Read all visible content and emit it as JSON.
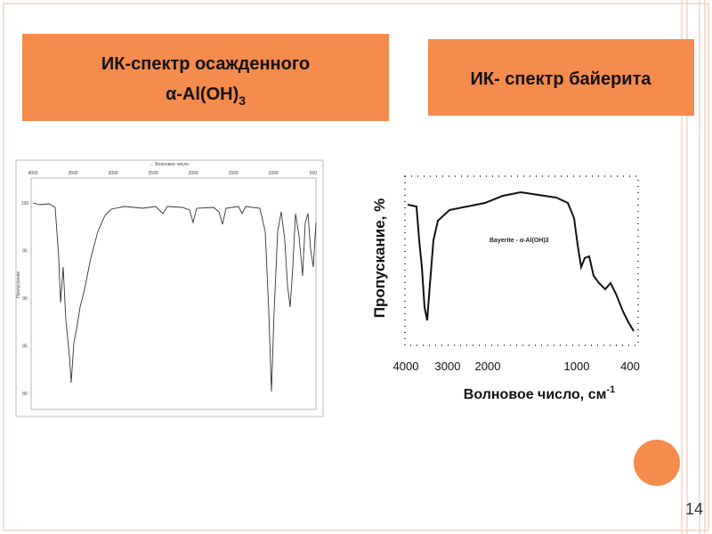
{
  "slide": {
    "left_title": {
      "line1": "ИК-спектр осажденного",
      "line2": "α-Al(OH)",
      "line2_sub": "3"
    },
    "right_title": "ИК- спектр байерита",
    "left_spectrum": {
      "x_caption": "← Волновое число",
      "y_caption": "Пропускание",
      "x_labels": [
        "4000",
        "3500",
        "3000",
        "2500",
        "2000",
        "1500",
        "1000",
        "500"
      ],
      "y_labels": [
        "100",
        "95",
        "90",
        "85",
        "80"
      ]
    },
    "right_spectrum": {
      "annotation": "Bayerite - α-Al(OH)3",
      "x_labels": [
        "4000",
        "3000",
        "2000",
        "1000",
        "400"
      ],
      "y_caption": "Пропускание, %",
      "x_caption": "Волновое число, см",
      "x_caption_sup": "-1"
    },
    "page_number": "14"
  }
}
